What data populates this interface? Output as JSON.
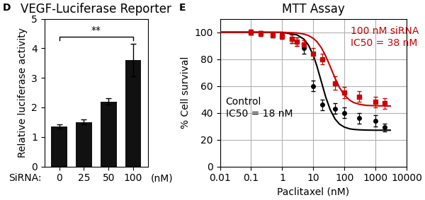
{
  "chart_data": [
    {
      "type": "bar",
      "title": "VEGF-Luciferase Reporter",
      "ylabel": "Relative luciferase activity",
      "categories": [
        "0",
        "25",
        "50",
        "100"
      ],
      "values": [
        1.35,
        1.5,
        2.2,
        3.6
      ],
      "errors": [
        0.07,
        0.08,
        0.1,
        0.55
      ],
      "color": "#111111",
      "ylim": [
        0,
        5
      ],
      "yticks": [
        0,
        1,
        2,
        3,
        4,
        5
      ],
      "annotations": [
        "D",
        "**",
        "SiRNA:",
        "(nM)"
      ]
    },
    {
      "type": "line",
      "title": "MTT Assay",
      "xlabel": "Paclitaxel (nM)",
      "ylabel": "% Cell survival",
      "log": "x",
      "grid": true,
      "xlim": [
        0.01,
        10000
      ],
      "xticks": [
        0.01,
        0.1,
        1,
        10,
        100,
        1000,
        10000
      ],
      "ylim": [
        0,
        110
      ],
      "yticks": [
        0,
        20,
        40,
        60,
        80,
        100
      ],
      "series": [
        {
          "type": "line",
          "color": "#000000",
          "x": [
            0.01,
            0.1,
            1,
            3,
            5,
            7,
            10,
            13,
            18,
            25,
            35,
            50,
            70,
            100,
            150,
            200,
            300,
            500,
            1000,
            3000
          ],
          "values": [
            100.0,
            100.0,
            99.8,
            98.0,
            94.8,
            90.4,
            82.8,
            75.0,
            63.5,
            51.9,
            42.3,
            35.4,
            31.5,
            29.3,
            28.0,
            27.6,
            27.3,
            27.1,
            27.0,
            27.0
          ]
        },
        {
          "type": "line",
          "color": "#cc0000",
          "x": [
            0.01,
            0.1,
            1,
            3,
            5,
            7,
            10,
            13,
            18,
            25,
            35,
            50,
            70,
            100,
            150,
            200,
            300,
            500,
            1000,
            3000
          ],
          "values": [
            100.0,
            100.0,
            99.9,
            99.4,
            98.6,
            97.5,
            95.4,
            93.0,
            88.6,
            82.4,
            74.5,
            65.8,
            58.7,
            53.2,
            49.3,
            47.6,
            46.3,
            45.5,
            45.2,
            45.0
          ]
        },
        {
          "type": "scatter",
          "color": "#000000",
          "marker": "circle",
          "x": [
            0.1,
            0.2,
            0.5,
            1.0,
            2.0,
            3.0,
            5.0,
            10.0,
            20.0,
            50.0,
            100.0,
            300.0,
            1000.0,
            2000.0
          ],
          "values": [
            100,
            99,
            98,
            97,
            95,
            93,
            88,
            60,
            46,
            43,
            40,
            36,
            34,
            29
          ],
          "errors": [
            2,
            2,
            2,
            2,
            3,
            3,
            4,
            4,
            4,
            4,
            4,
            4,
            4,
            3
          ]
        },
        {
          "type": "scatter",
          "color": "#cc0000",
          "marker": "square",
          "x": [
            0.1,
            0.2,
            0.5,
            1.0,
            2.0,
            3.0,
            5.0,
            10.0,
            20.0,
            50.0,
            100.0,
            300.0,
            1000.0,
            2000.0
          ],
          "values": [
            100,
            99,
            98,
            97,
            95,
            93,
            91,
            84,
            80,
            62,
            55,
            52,
            48,
            47
          ],
          "errors": [
            2,
            2,
            2,
            2,
            3,
            3,
            3,
            4,
            4,
            5,
            4,
            4,
            4,
            4
          ]
        }
      ],
      "annotations": [
        "E",
        "Control",
        "IC50 = 18 nM",
        "100 nM siRNA",
        "IC50 = 38 nM"
      ]
    }
  ]
}
